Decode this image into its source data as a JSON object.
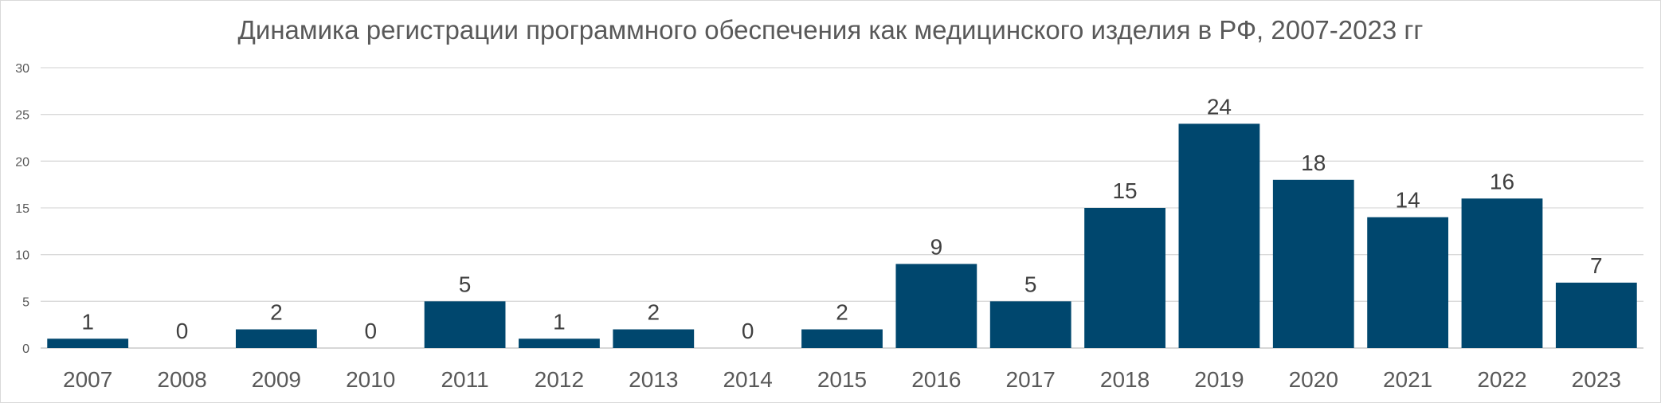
{
  "chart_data": {
    "type": "bar",
    "title": "Динамика регистрации программного обеспечения как медицинского изделия в РФ, 2007-2023 гг",
    "categories": [
      "2007",
      "2008",
      "2009",
      "2010",
      "2011",
      "2012",
      "2013",
      "2014",
      "2015",
      "2016",
      "2017",
      "2018",
      "2019",
      "2020",
      "2021",
      "2022",
      "2023"
    ],
    "values": [
      1,
      0,
      2,
      0,
      5,
      1,
      2,
      0,
      2,
      9,
      5,
      15,
      24,
      18,
      14,
      16,
      7
    ],
    "ylim": [
      0,
      30
    ],
    "yticks": [
      0,
      5,
      10,
      15,
      20,
      25,
      30
    ],
    "grid": true,
    "legend": "none",
    "data_labels": true,
    "bar_color": "#00476E",
    "xlabel": "",
    "ylabel": ""
  }
}
